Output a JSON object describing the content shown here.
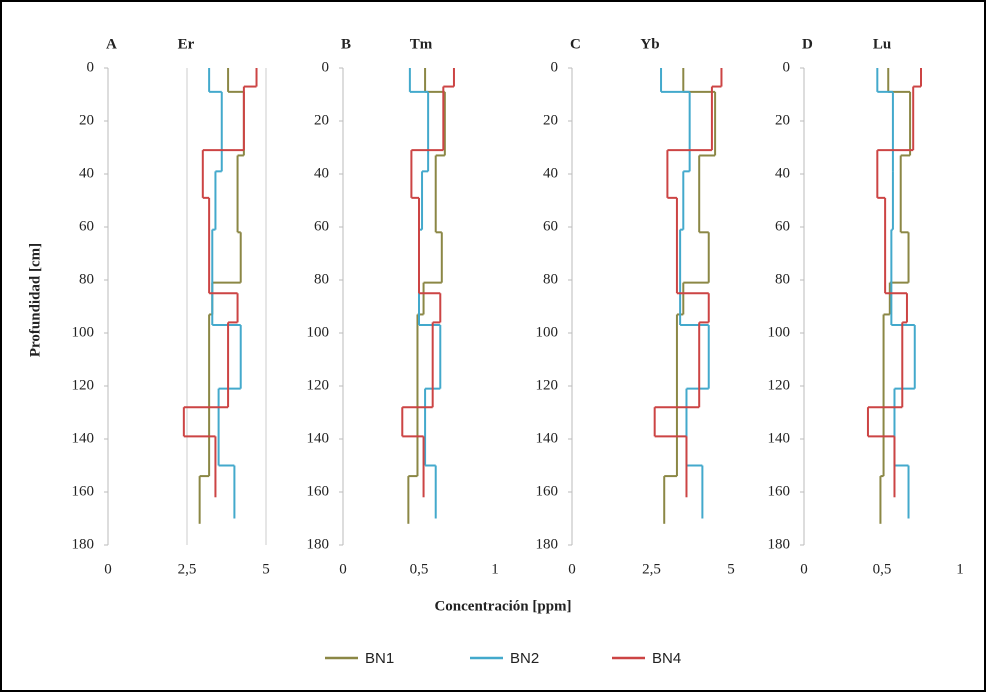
{
  "ylabel": "Profundidad [cm]",
  "xlabel": "Concentración [ppm]",
  "chart_data": [
    {
      "type": "step",
      "panel_label": "A",
      "title": "Er",
      "y_inverted": true,
      "grid": true,
      "xlim": [
        0,
        5
      ],
      "xticks": [
        0,
        {
          "value": 2.5,
          "label": "2,5"
        },
        5
      ],
      "ylim": [
        0,
        180
      ],
      "yticks": [
        0,
        20,
        40,
        60,
        80,
        100,
        120,
        140,
        160,
        180
      ],
      "series": [
        {
          "name": "BN1",
          "color": "#8b8745",
          "depths": [
            0,
            9,
            33,
            62,
            81,
            93,
            154,
            172
          ],
          "values": [
            3.8,
            4.3,
            4.1,
            4.2,
            3.3,
            3.2,
            2.9
          ]
        },
        {
          "name": "BN2",
          "color": "#43a9cc",
          "depths": [
            0,
            9,
            39,
            61,
            97,
            121,
            150,
            170
          ],
          "values": [
            3.2,
            3.6,
            3.4,
            3.3,
            4.2,
            3.5,
            4.0
          ]
        },
        {
          "name": "BN4",
          "color": "#cc4444",
          "depths": [
            0,
            7,
            31,
            49,
            85,
            96,
            128,
            139,
            162
          ],
          "values": [
            4.7,
            4.3,
            3.0,
            3.2,
            4.1,
            3.8,
            2.4,
            3.4
          ]
        }
      ]
    },
    {
      "type": "step",
      "panel_label": "B",
      "title": "Tm",
      "y_inverted": true,
      "grid": false,
      "xlim": [
        0,
        1
      ],
      "xticks": [
        0,
        {
          "value": 0.5,
          "label": "0,5"
        },
        1
      ],
      "ylim": [
        0,
        180
      ],
      "yticks": [
        0,
        20,
        40,
        60,
        80,
        100,
        120,
        140,
        160,
        180
      ],
      "series": [
        {
          "name": "BN1",
          "color": "#8b8745",
          "depths": [
            0,
            9,
            33,
            62,
            81,
            93,
            154,
            172
          ],
          "values": [
            0.54,
            0.67,
            0.61,
            0.65,
            0.53,
            0.49,
            0.43
          ]
        },
        {
          "name": "BN2",
          "color": "#43a9cc",
          "depths": [
            0,
            9,
            39,
            61,
            97,
            121,
            150,
            170
          ],
          "values": [
            0.44,
            0.56,
            0.52,
            0.5,
            0.64,
            0.54,
            0.61
          ]
        },
        {
          "name": "BN4",
          "color": "#cc4444",
          "depths": [
            0,
            7,
            31,
            49,
            85,
            96,
            128,
            139,
            162
          ],
          "values": [
            0.73,
            0.66,
            0.45,
            0.5,
            0.64,
            0.59,
            0.39,
            0.53
          ]
        }
      ]
    },
    {
      "type": "step",
      "panel_label": "C",
      "title": "Yb",
      "y_inverted": true,
      "grid": false,
      "xlim": [
        0,
        5
      ],
      "xticks": [
        0,
        {
          "value": 2.5,
          "label": "2,5"
        },
        5
      ],
      "ylim": [
        0,
        180
      ],
      "yticks": [
        0,
        20,
        40,
        60,
        80,
        100,
        120,
        140,
        160,
        180
      ],
      "series": [
        {
          "name": "BN1",
          "color": "#8b8745",
          "depths": [
            0,
            9,
            33,
            62,
            81,
            93,
            154,
            172
          ],
          "values": [
            3.5,
            4.5,
            4.0,
            4.3,
            3.5,
            3.3,
            2.9
          ]
        },
        {
          "name": "BN2",
          "color": "#43a9cc",
          "depths": [
            0,
            9,
            39,
            61,
            97,
            121,
            150,
            170
          ],
          "values": [
            2.8,
            3.7,
            3.5,
            3.4,
            4.3,
            3.6,
            4.1
          ]
        },
        {
          "name": "BN4",
          "color": "#cc4444",
          "depths": [
            0,
            7,
            31,
            49,
            85,
            96,
            128,
            139,
            162
          ],
          "values": [
            4.7,
            4.4,
            3.0,
            3.3,
            4.3,
            4.0,
            2.6,
            3.6
          ]
        }
      ]
    },
    {
      "type": "step",
      "panel_label": "D",
      "title": "Lu",
      "y_inverted": true,
      "grid": false,
      "xlim": [
        0,
        1
      ],
      "xticks": [
        0,
        {
          "value": 0.5,
          "label": "0,5"
        },
        1
      ],
      "ylim": [
        0,
        180
      ],
      "yticks": [
        0,
        20,
        40,
        60,
        80,
        100,
        120,
        140,
        160,
        180
      ],
      "series": [
        {
          "name": "BN1",
          "color": "#8b8745",
          "depths": [
            0,
            9,
            33,
            62,
            81,
            93,
            154,
            172
          ],
          "values": [
            0.54,
            0.68,
            0.62,
            0.67,
            0.55,
            0.51,
            0.49
          ]
        },
        {
          "name": "BN2",
          "color": "#43a9cc",
          "depths": [
            0,
            9,
            39,
            61,
            97,
            121,
            150,
            170
          ],
          "values": [
            0.47,
            0.57,
            0.57,
            0.56,
            0.71,
            0.58,
            0.67
          ]
        },
        {
          "name": "BN4",
          "color": "#cc4444",
          "depths": [
            0,
            7,
            31,
            49,
            85,
            96,
            128,
            139,
            162
          ],
          "values": [
            0.75,
            0.7,
            0.47,
            0.52,
            0.66,
            0.63,
            0.41,
            0.58
          ]
        }
      ]
    }
  ]
}
